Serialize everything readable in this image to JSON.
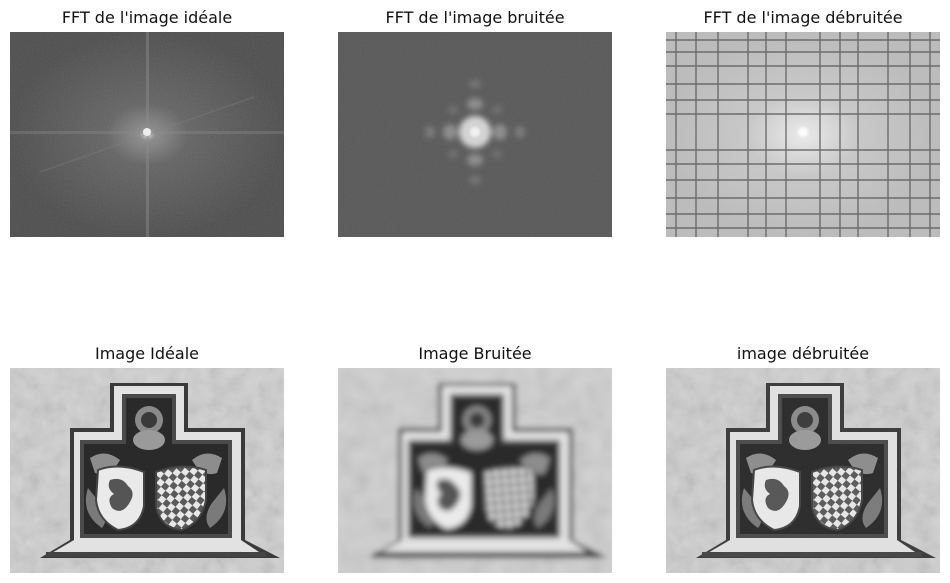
{
  "panels": [
    {
      "title": "FFT de l'image idéale"
    },
    {
      "title": "FFT de l'image bruitée"
    },
    {
      "title": "FFT de l'image débruitée"
    },
    {
      "title": "Image Idéale"
    },
    {
      "title": "Image Bruitée"
    },
    {
      "title": "image débruitée"
    }
  ]
}
